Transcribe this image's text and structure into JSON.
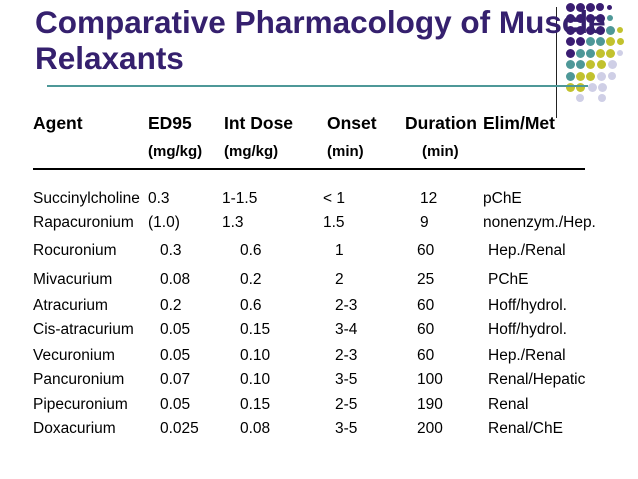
{
  "slide": {
    "title_lines": [
      "Comparative Pharmacology of Muscle",
      "Relaxants"
    ],
    "title_color": "#35206E"
  },
  "table": {
    "header": {
      "labels": [
        "Agent",
        "ED95",
        "Int Dose",
        "Onset",
        "Duration",
        "Elim/Met"
      ],
      "units": [
        "",
        "(mg/kg)",
        "(mg/kg)",
        "(min)",
        "(min)",
        ""
      ]
    },
    "rows": [
      [
        "Succinylcholine",
        "0.3",
        "1-1.5",
        "< 1",
        "12",
        "pChE"
      ],
      [
        "Rapacuronium",
        "(1.0)",
        "1.3",
        "1.5",
        "9",
        "nonenzym./Hep."
      ],
      [
        "Rocuronium",
        "0.3",
        "0.6",
        "1",
        "60",
        "Hep./Renal"
      ],
      [
        "Mivacurium",
        "0.08",
        "0.2",
        "2",
        "25",
        "PChE"
      ],
      [
        "Atracurium",
        "0.2",
        "0.6",
        "2-3",
        "60",
        "Hoff/hydrol."
      ],
      [
        "Cis-atracurium",
        "0.05",
        "0.15",
        "3-4",
        "60",
        "Hoff/hydrol."
      ],
      [
        "Vecuronium",
        "0.05",
        "0.10",
        "2-3",
        "60",
        "Hep./Renal"
      ],
      [
        "Pancuronium",
        "0.07",
        "0.10",
        "3-5",
        "100",
        "Renal/Hepatic"
      ],
      [
        "Pipecuronium",
        "0.05",
        "0.15",
        "2-5",
        "190",
        "Renal"
      ],
      [
        "Doxacurium",
        "0.025",
        "0.08",
        "3-5",
        "200",
        "Renal/ChE"
      ]
    ]
  },
  "decor": {
    "accent_line_teal": "#4E9898",
    "vertical_line": "#222222",
    "colors": {
      "purple": "#3A1D72",
      "teal": "#4E9898",
      "olive": "#C2C22E",
      "lavender": "#CFCFE6"
    },
    "dots": [
      [
        570,
        7,
        "purple",
        9
      ],
      [
        580,
        7,
        "purple",
        9
      ],
      [
        590,
        7,
        "purple",
        9
      ],
      [
        600,
        7,
        "purple",
        8
      ],
      [
        609,
        7,
        "purple",
        5
      ],
      [
        570,
        18,
        "purple",
        9
      ],
      [
        580,
        18,
        "purple",
        9
      ],
      [
        590,
        18,
        "purple",
        9
      ],
      [
        600,
        18,
        "purple",
        9
      ],
      [
        610,
        18,
        "teal",
        6
      ],
      [
        570,
        30,
        "purple",
        9
      ],
      [
        580,
        30,
        "purple",
        9
      ],
      [
        590,
        30,
        "purple",
        9
      ],
      [
        600,
        30,
        "purple",
        9
      ],
      [
        610,
        30,
        "teal",
        9
      ],
      [
        620,
        30,
        "olive",
        6
      ],
      [
        570,
        41,
        "purple",
        9
      ],
      [
        580,
        41,
        "purple",
        9
      ],
      [
        590,
        41,
        "teal",
        9
      ],
      [
        600,
        41,
        "teal",
        9
      ],
      [
        610,
        41,
        "olive",
        9
      ],
      [
        620,
        41,
        "olive",
        7
      ],
      [
        570,
        53,
        "purple",
        9
      ],
      [
        580,
        53,
        "teal",
        9
      ],
      [
        590,
        53,
        "teal",
        9
      ],
      [
        600,
        53,
        "olive",
        9
      ],
      [
        610,
        53,
        "olive",
        9
      ],
      [
        620,
        53,
        "lavender",
        6
      ],
      [
        570,
        64,
        "teal",
        9
      ],
      [
        580,
        64,
        "teal",
        9
      ],
      [
        590,
        64,
        "olive",
        9
      ],
      [
        601,
        64,
        "olive",
        9
      ],
      [
        612,
        64,
        "lavender",
        9
      ],
      [
        570,
        76,
        "teal",
        9
      ],
      [
        580,
        76,
        "olive",
        9
      ],
      [
        590,
        76,
        "olive",
        9
      ],
      [
        601,
        76,
        "lavender",
        9
      ],
      [
        612,
        76,
        "lavender",
        8
      ],
      [
        570,
        87,
        "olive",
        9
      ],
      [
        580,
        87,
        "olive",
        9
      ],
      [
        592,
        87,
        "lavender",
        9
      ],
      [
        602,
        87,
        "lavender",
        9
      ],
      [
        580,
        98,
        "lavender",
        8
      ],
      [
        602,
        98,
        "lavender",
        8
      ]
    ]
  }
}
